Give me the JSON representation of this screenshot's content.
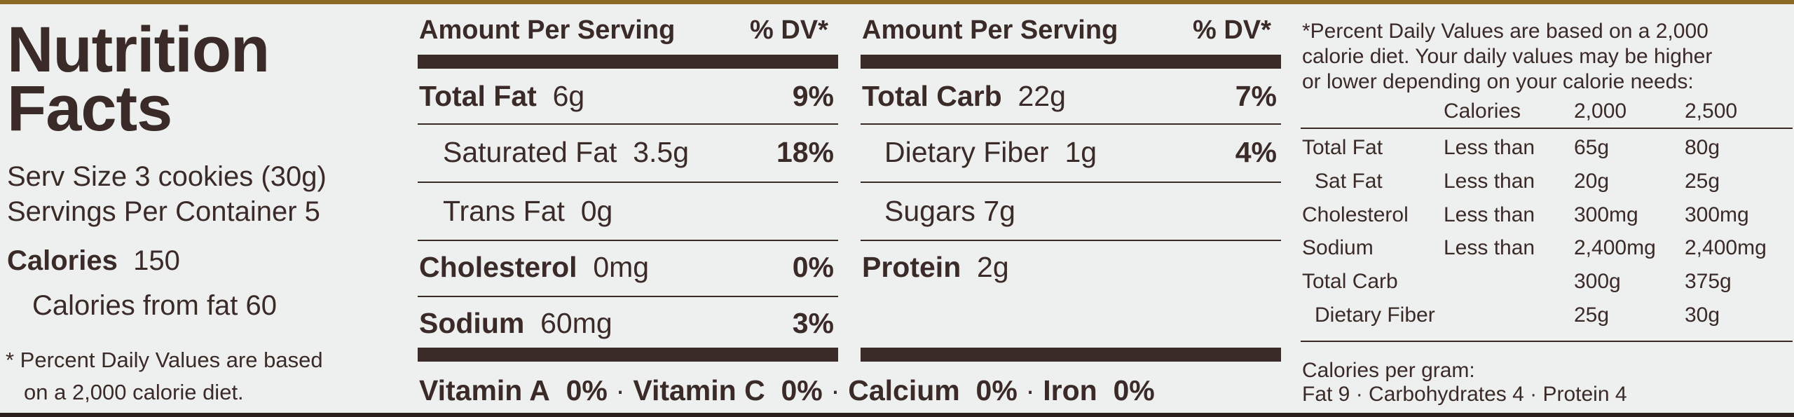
{
  "title_line1": "Nutrition",
  "title_line2": "Facts",
  "serving_size": "Serv Size 3 cookies (30g)",
  "servings_per_container": "Servings Per Container 5",
  "calories_label": "Calories",
  "calories_value": "150",
  "calories_from_fat": "Calories from fat  60",
  "footnote_line1": "* Percent Daily Values are based",
  "footnote_line2": "on a 2,000 calorie diet.",
  "left_table": {
    "header_amount": "Amount Per Serving",
    "header_dv": "% DV*",
    "rows": [
      {
        "label": "Total Fat",
        "amount": "6g",
        "dv": "9%"
      },
      {
        "label": "Saturated Fat",
        "amount": "3.5g",
        "dv": "18%"
      },
      {
        "label": "Trans Fat",
        "amount": "0g",
        "dv": ""
      },
      {
        "label": "Cholesterol",
        "amount": "0mg",
        "dv": "0%"
      },
      {
        "label": "Sodium",
        "amount": "60mg",
        "dv": "3%"
      }
    ]
  },
  "right_table": {
    "header_amount": "Amount Per Serving",
    "header_dv": "% DV*",
    "rows": [
      {
        "label": "Total Carb",
        "amount": "22g",
        "dv": "7%"
      },
      {
        "label": "Dietary Fiber",
        "amount": "1g",
        "dv": "4%"
      },
      {
        "label": "Sugars",
        "amount": "7g",
        "dv": ""
      },
      {
        "label": "Protein",
        "amount": "2g",
        "dv": ""
      }
    ]
  },
  "vitamins": [
    {
      "label": "Vitamin A",
      "value": "0%"
    },
    {
      "label": "Vitamin C",
      "value": "0%"
    },
    {
      "label": "Calcium",
      "value": "0%"
    },
    {
      "label": "Iron",
      "value": "0%"
    }
  ],
  "vitamin_separator": "·",
  "dv_note_line1": "*Percent Daily Values are based on a 2,000",
  "dv_note_line2": "calorie diet. Your daily values may be higher",
  "dv_note_line3": "or lower depending on your calorie needs:",
  "dv_table": {
    "headers": [
      "",
      "",
      "Calories",
      "2,000",
      "2,500"
    ],
    "rows": [
      {
        "nutrient": "Total Fat",
        "qual": "Less than",
        "v2000": "65g",
        "v2500": "80g"
      },
      {
        "nutrient": "Sat Fat",
        "qual": "Less than",
        "v2000": "20g",
        "v2500": "25g"
      },
      {
        "nutrient": "Cholesterol",
        "qual": "Less than",
        "v2000": "300mg",
        "v2500": "300mg"
      },
      {
        "nutrient": "Sodium",
        "qual": "Less than",
        "v2000": "2,400mg",
        "v2500": "2,400mg"
      },
      {
        "nutrient": "Total Carb",
        "qual": "",
        "v2000": "300g",
        "v2500": "375g"
      },
      {
        "nutrient": "Dietary Fiber",
        "qual": "",
        "v2000": "25g",
        "v2500": "30g"
      }
    ]
  },
  "cal_per_gram_label": "Calories per gram:",
  "cal_per_gram_values": "Fat 9 · Carbohydrates 4 · Protein 4",
  "colors": {
    "ink": "#3a2a28",
    "panel": "#eef0ef",
    "frame": "#2a1f1d",
    "gold": "#8a6a22"
  }
}
